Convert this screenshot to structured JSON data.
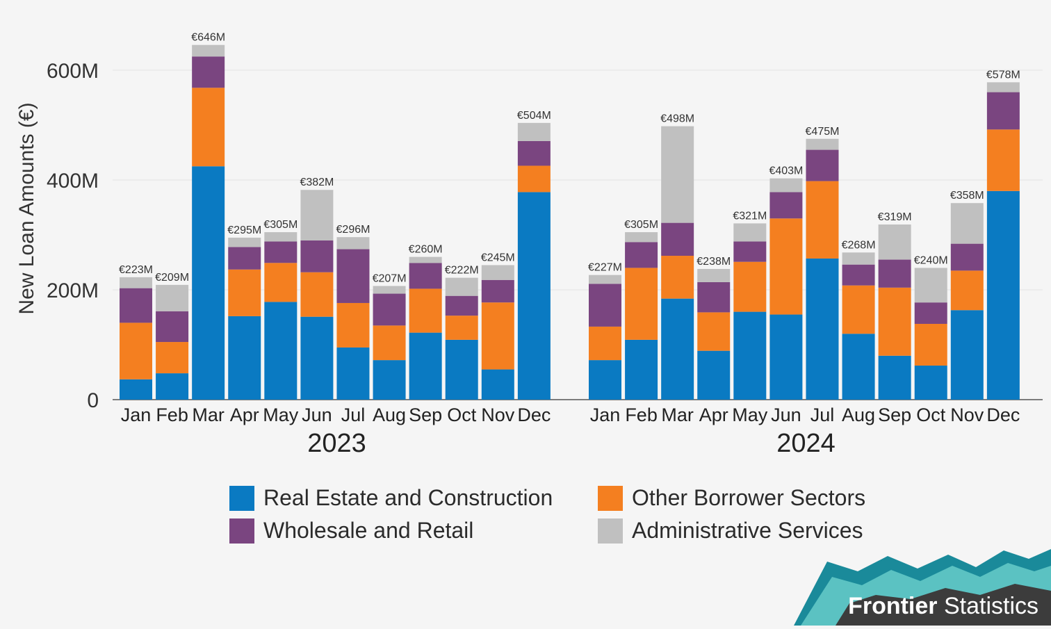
{
  "chart_data": {
    "type": "bar",
    "stacked": true,
    "ylabel": "New Loan Amounts (€)",
    "ylim": [
      0,
      660
    ],
    "yticks": [
      0,
      200,
      400,
      600
    ],
    "ytick_labels": [
      "0",
      "200M",
      "400M",
      "600M"
    ],
    "categories": [
      "Jan",
      "Feb",
      "Mar",
      "Apr",
      "May",
      "Jun",
      "Jul",
      "Aug",
      "Sep",
      "Oct",
      "Nov",
      "Dec"
    ],
    "legend_position": "bottom",
    "series": [
      {
        "name": "Real Estate and Construction",
        "color": "#0a7ac2"
      },
      {
        "name": "Other Borrower Sectors",
        "color": "#f47f20"
      },
      {
        "name": "Wholesale and Retail",
        "color": "#7a4580"
      },
      {
        "name": "Administrative Services",
        "color": "#c0c0c0"
      }
    ],
    "panels": [
      {
        "year": "2023",
        "totals": [
          "€223M",
          "€209M",
          "€646M",
          "€295M",
          "€305M",
          "€382M",
          "€296M",
          "€207M",
          "€260M",
          "€222M",
          "€245M",
          "€504M"
        ],
        "stacks": [
          [
            37,
            103,
            63,
            20
          ],
          [
            48,
            57,
            56,
            48
          ],
          [
            425,
            143,
            57,
            21
          ],
          [
            152,
            85,
            41,
            17
          ],
          [
            178,
            71,
            39,
            17
          ],
          [
            151,
            81,
            58,
            92
          ],
          [
            95,
            81,
            98,
            22
          ],
          [
            72,
            63,
            58,
            14
          ],
          [
            122,
            80,
            47,
            11
          ],
          [
            109,
            44,
            36,
            33
          ],
          [
            55,
            122,
            41,
            27
          ],
          [
            378,
            48,
            45,
            33
          ]
        ]
      },
      {
        "year": "2024",
        "totals": [
          "€227M",
          "€305M",
          "€498M",
          "€238M",
          "€321M",
          "€403M",
          "€475M",
          "€268M",
          "€319M",
          "€240M",
          "€358M",
          "€578M"
        ],
        "stacks": [
          [
            72,
            61,
            78,
            16
          ],
          [
            109,
            131,
            47,
            18
          ],
          [
            184,
            78,
            60,
            176
          ],
          [
            89,
            70,
            55,
            24
          ],
          [
            160,
            91,
            37,
            33
          ],
          [
            155,
            175,
            48,
            25
          ],
          [
            257,
            141,
            57,
            20
          ],
          [
            120,
            88,
            38,
            22
          ],
          [
            80,
            124,
            51,
            64
          ],
          [
            62,
            76,
            39,
            63
          ],
          [
            163,
            72,
            49,
            74
          ],
          [
            380,
            112,
            68,
            18
          ]
        ]
      }
    ]
  },
  "legend": {
    "items": [
      {
        "label": "Real Estate and Construction",
        "color": "#0a7ac2"
      },
      {
        "label": "Other Borrower Sectors",
        "color": "#f47f20"
      },
      {
        "label": "Wholesale and Retail",
        "color": "#7a4580"
      },
      {
        "label": "Administrative Services",
        "color": "#c0c0c0"
      }
    ]
  },
  "brand": {
    "name_bold": "Frontier",
    "name_rest": " Statistics",
    "colors": {
      "dark": "#3c3c3c",
      "teal": "#1a8a9a",
      "light_teal": "#5bc2c2"
    }
  }
}
